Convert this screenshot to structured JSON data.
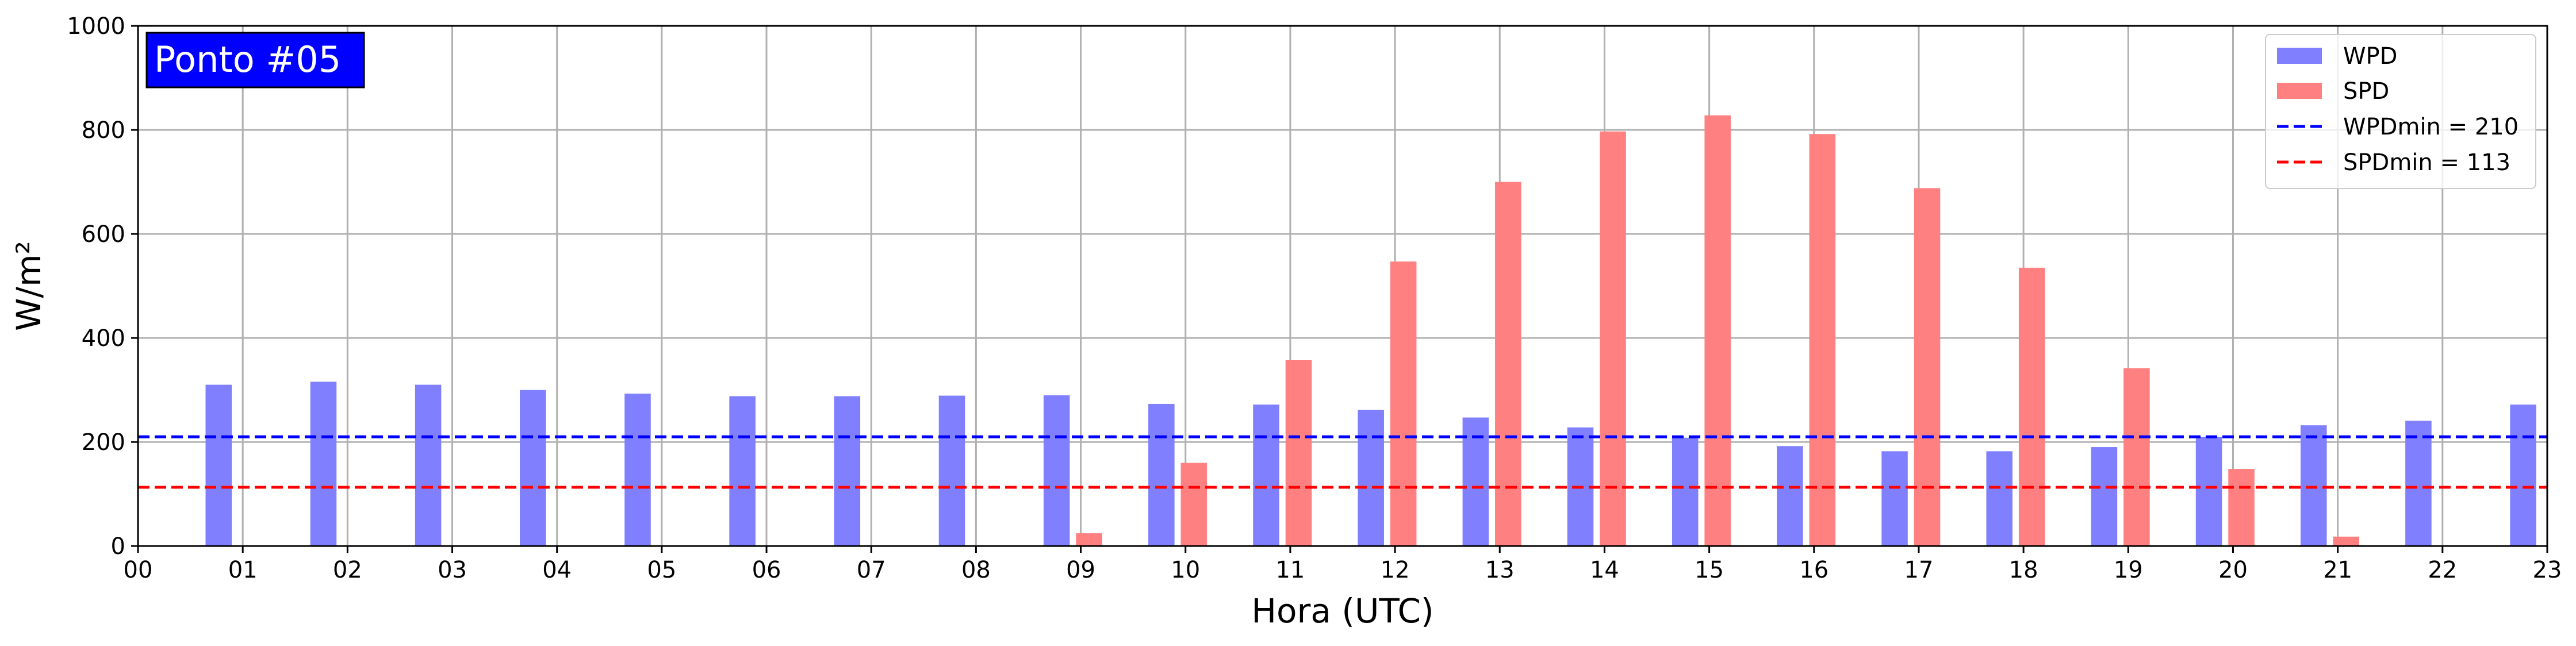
{
  "chart_data": {
    "type": "bar",
    "title": "",
    "badge": "Ponto #05",
    "badge_color": "#0000ff",
    "xlabel": "Hora (UTC)",
    "ylabel": "W/m²",
    "x_ticks": [
      "00",
      "01",
      "02",
      "03",
      "04",
      "05",
      "06",
      "07",
      "08",
      "09",
      "10",
      "11",
      "12",
      "13",
      "14",
      "15",
      "16",
      "17",
      "18",
      "19",
      "20",
      "21",
      "22",
      "23"
    ],
    "xlim": [
      0,
      23
    ],
    "ylim": [
      0,
      1000
    ],
    "y_ticks": [
      0,
      200,
      400,
      600,
      800,
      1000
    ],
    "grid": true,
    "legend_position": "top-right",
    "series": [
      {
        "name": "WPD",
        "color": "#8080ff",
        "hours": [
          1,
          2,
          3,
          4,
          5,
          6,
          7,
          8,
          9,
          10,
          11,
          12,
          13,
          14,
          15,
          16,
          17,
          18,
          19,
          20,
          21,
          22,
          23
        ],
        "values": [
          310,
          316,
          310,
          300,
          293,
          288,
          288,
          289,
          290,
          273,
          272,
          262,
          247,
          228,
          208,
          192,
          182,
          182,
          190,
          210,
          232,
          241,
          272
        ]
      },
      {
        "name": "SPD",
        "color": "#ff8080",
        "hours": [
          1,
          2,
          3,
          4,
          5,
          6,
          7,
          8,
          9,
          10,
          11,
          12,
          13,
          14,
          15,
          16,
          17,
          18,
          19,
          20,
          21,
          22,
          23
        ],
        "values": [
          0,
          0,
          0,
          0,
          0,
          0,
          0,
          0,
          25,
          160,
          358,
          547,
          700,
          797,
          828,
          792,
          688,
          535,
          342,
          148,
          18,
          0,
          0
        ]
      }
    ],
    "reference_lines": [
      {
        "name": "WPDmin = 210",
        "value": 210,
        "color": "#0000ff",
        "style": "dashed"
      },
      {
        "name": "SPDmin = 113",
        "value": 113,
        "color": "#ff0000",
        "style": "dashed"
      }
    ]
  }
}
